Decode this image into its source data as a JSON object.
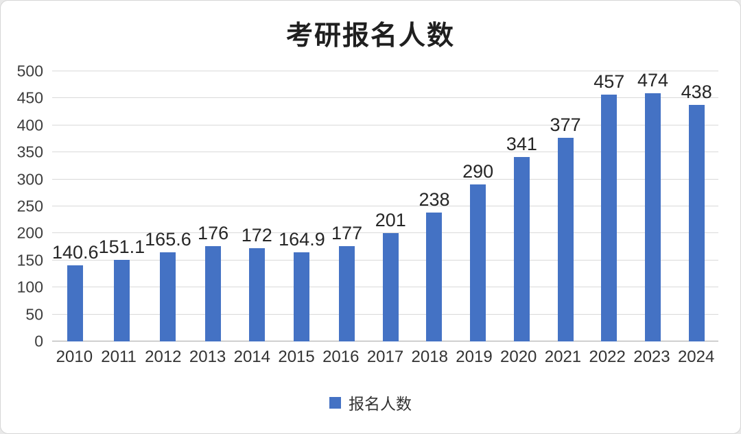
{
  "title": "考研报名人数",
  "legend": {
    "label": "报名人数",
    "swatch_color": "#4472c4"
  },
  "chart_data": {
    "type": "bar",
    "title": "考研报名人数",
    "categories": [
      "2010",
      "2011",
      "2012",
      "2013",
      "2014",
      "2015",
      "2016",
      "2017",
      "2018",
      "2019",
      "2020",
      "2021",
      "2022",
      "2023",
      "2024"
    ],
    "series": [
      {
        "name": "报名人数",
        "values": [
          140.6,
          151.1,
          165.6,
          176,
          172,
          164.9,
          177,
          201,
          238,
          290,
          341,
          377,
          457,
          474,
          438
        ]
      }
    ],
    "data_labels_shown": true,
    "xlabel": "",
    "ylabel": "",
    "ylim": [
      0,
      500
    ],
    "ytick_step": 50,
    "yticks": [
      0,
      50,
      100,
      150,
      200,
      250,
      300,
      350,
      400,
      450,
      500
    ],
    "grid": true,
    "gridline_color": "#d9d9d9",
    "bar_color": "#4472c4",
    "legend_entries": [
      "报名人数"
    ],
    "legend_position": "bottom"
  }
}
